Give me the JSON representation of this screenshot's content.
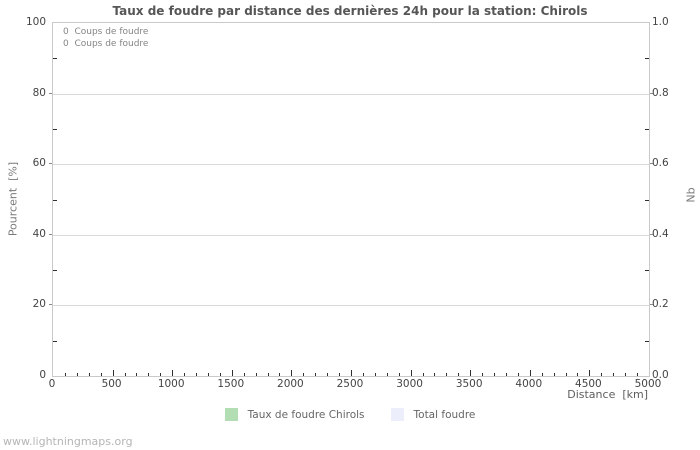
{
  "chart_data": {
    "type": "line",
    "title": "Taux de foudre par distance des dernières 24h pour la station: Chirols",
    "xlabel": "Distance  [km]",
    "ylabel_left": "Pourcent  [%]",
    "ylabel_right": "Nb",
    "xlim": [
      0,
      5000
    ],
    "ylim_left": [
      0,
      100
    ],
    "ylim_right": [
      0.0,
      1.0
    ],
    "x_major_ticks": [
      0,
      500,
      1000,
      1500,
      2000,
      2500,
      3000,
      3500,
      4000,
      4500,
      5000
    ],
    "x_minor_step": 100,
    "y_left_major_ticks": [
      0,
      20,
      40,
      60,
      80,
      100
    ],
    "y_left_minor_step": 10,
    "y_right_major_ticks": [
      "0.0",
      "0.2",
      "0.4",
      "0.6",
      "0.8",
      "1.0"
    ],
    "y_right_minor_step": 0.1,
    "grid": true,
    "legend_position": "bottom-center",
    "series": [
      {
        "name": "Taux de foudre Chirols",
        "color": "#b3ddb3",
        "values": []
      },
      {
        "name": "Total foudre",
        "color": "#edeefb",
        "values": []
      }
    ],
    "annotations": [
      "0  Coups de foudre",
      "0  Coups de foudre"
    ],
    "colors": {
      "grid": "#dadada",
      "border": "#c9c9c9",
      "tick": "#2f2f2f",
      "title_text": "#565656",
      "tick_text": "#444444",
      "legend_text": "#666666"
    }
  },
  "watermark": "www.lightningmaps.org"
}
